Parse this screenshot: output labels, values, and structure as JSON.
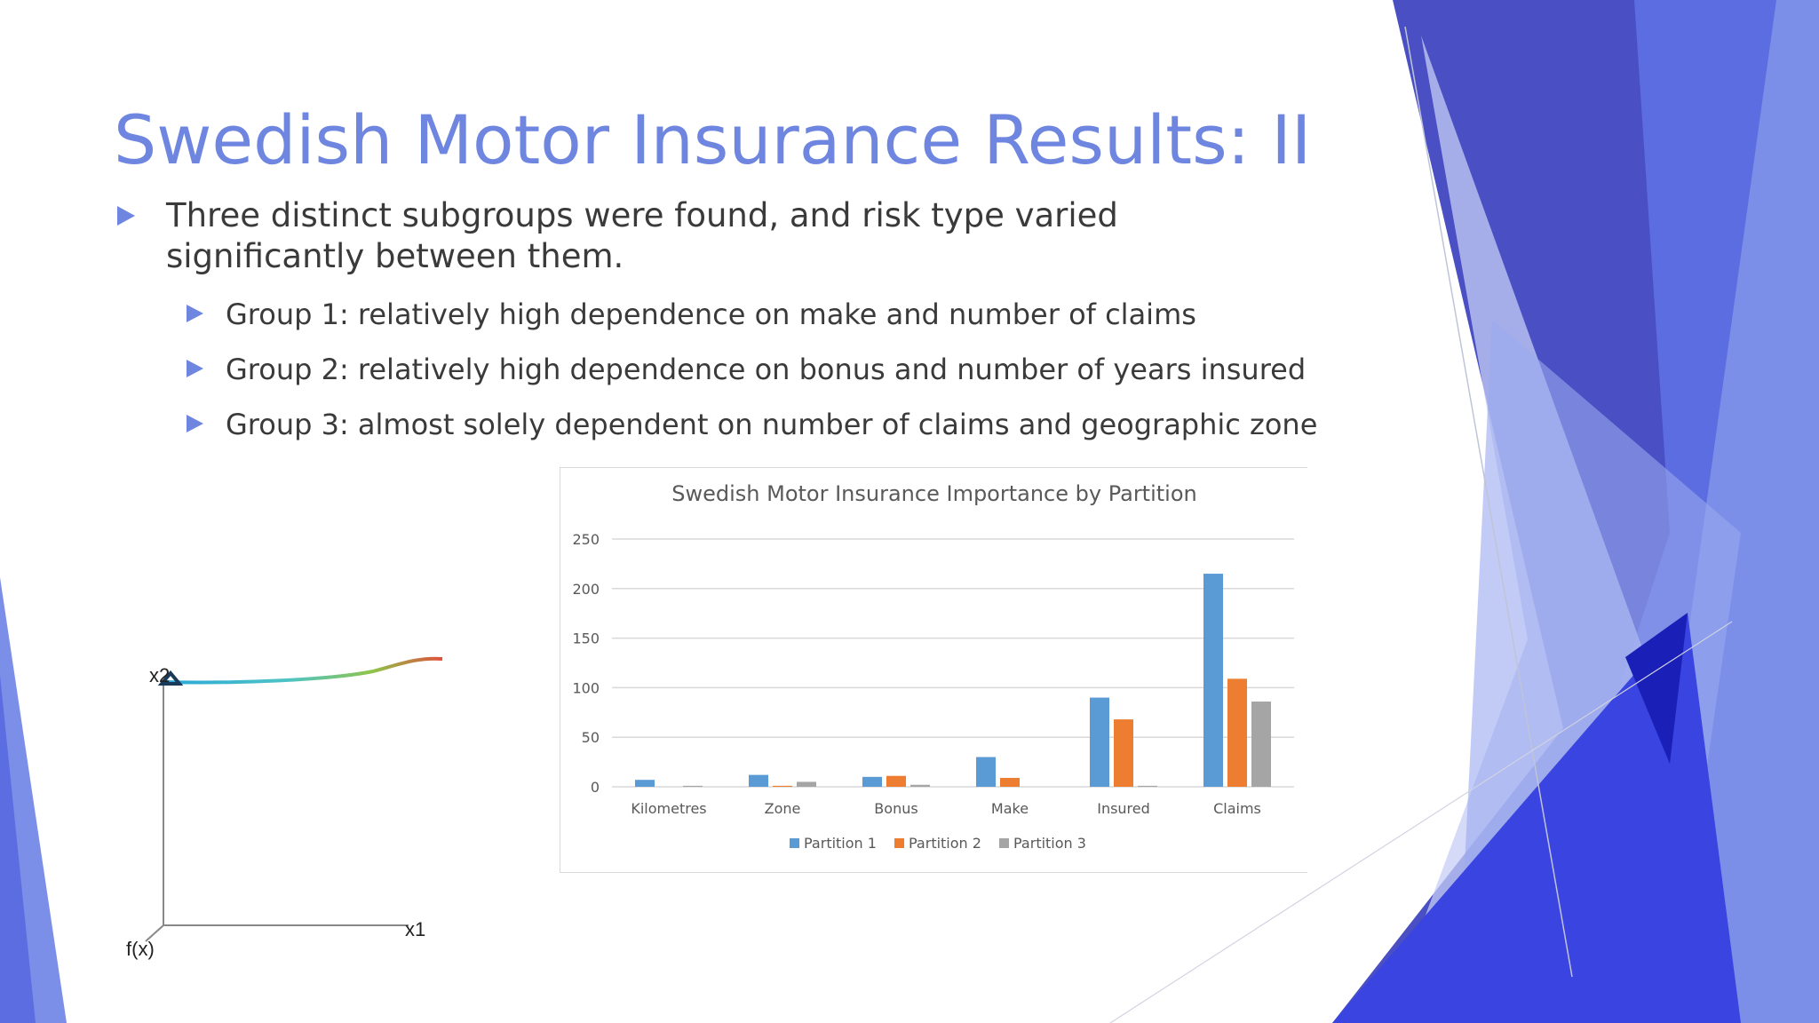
{
  "slide": {
    "title": "Swedish Motor Insurance Results: II",
    "bullets": {
      "main": "Three distinct subgroups were found, and risk type varied significantly between them.",
      "subs": [
        "Group 1: relatively high dependence on make and number of claims",
        "Group 2: relatively high dependence on bonus and number of years insured",
        "Group 3: almost solely dependent on number of claims and geographic zone"
      ]
    },
    "sketch": {
      "y_label": "x2",
      "x_label": "x1",
      "origin_label": "f(x)"
    }
  },
  "colors": {
    "title": "#6f86e0",
    "bullet_arrow": "#6f86e0",
    "partition_1": "#5b9bd5",
    "partition_2": "#ed7d31",
    "partition_3": "#a5a5a5"
  },
  "chart_data": {
    "type": "bar",
    "title": "Swedish Motor Insurance Importance by Partition",
    "categories": [
      "Kilometres",
      "Zone",
      "Bonus",
      "Make",
      "Insured",
      "Claims"
    ],
    "series": [
      {
        "name": "Partition 1",
        "color": "#5b9bd5",
        "values": [
          7,
          12,
          10,
          30,
          90,
          215
        ]
      },
      {
        "name": "Partition 2",
        "color": "#ed7d31",
        "values": [
          0,
          1,
          11,
          9,
          68,
          109
        ]
      },
      {
        "name": "Partition 3",
        "color": "#a5a5a5",
        "values": [
          1,
          5,
          2,
          0,
          1,
          86
        ]
      }
    ],
    "yticks": [
      0,
      50,
      100,
      150,
      200,
      250
    ],
    "ylim": [
      0,
      250
    ],
    "grid": true,
    "legend_position": "bottom"
  }
}
